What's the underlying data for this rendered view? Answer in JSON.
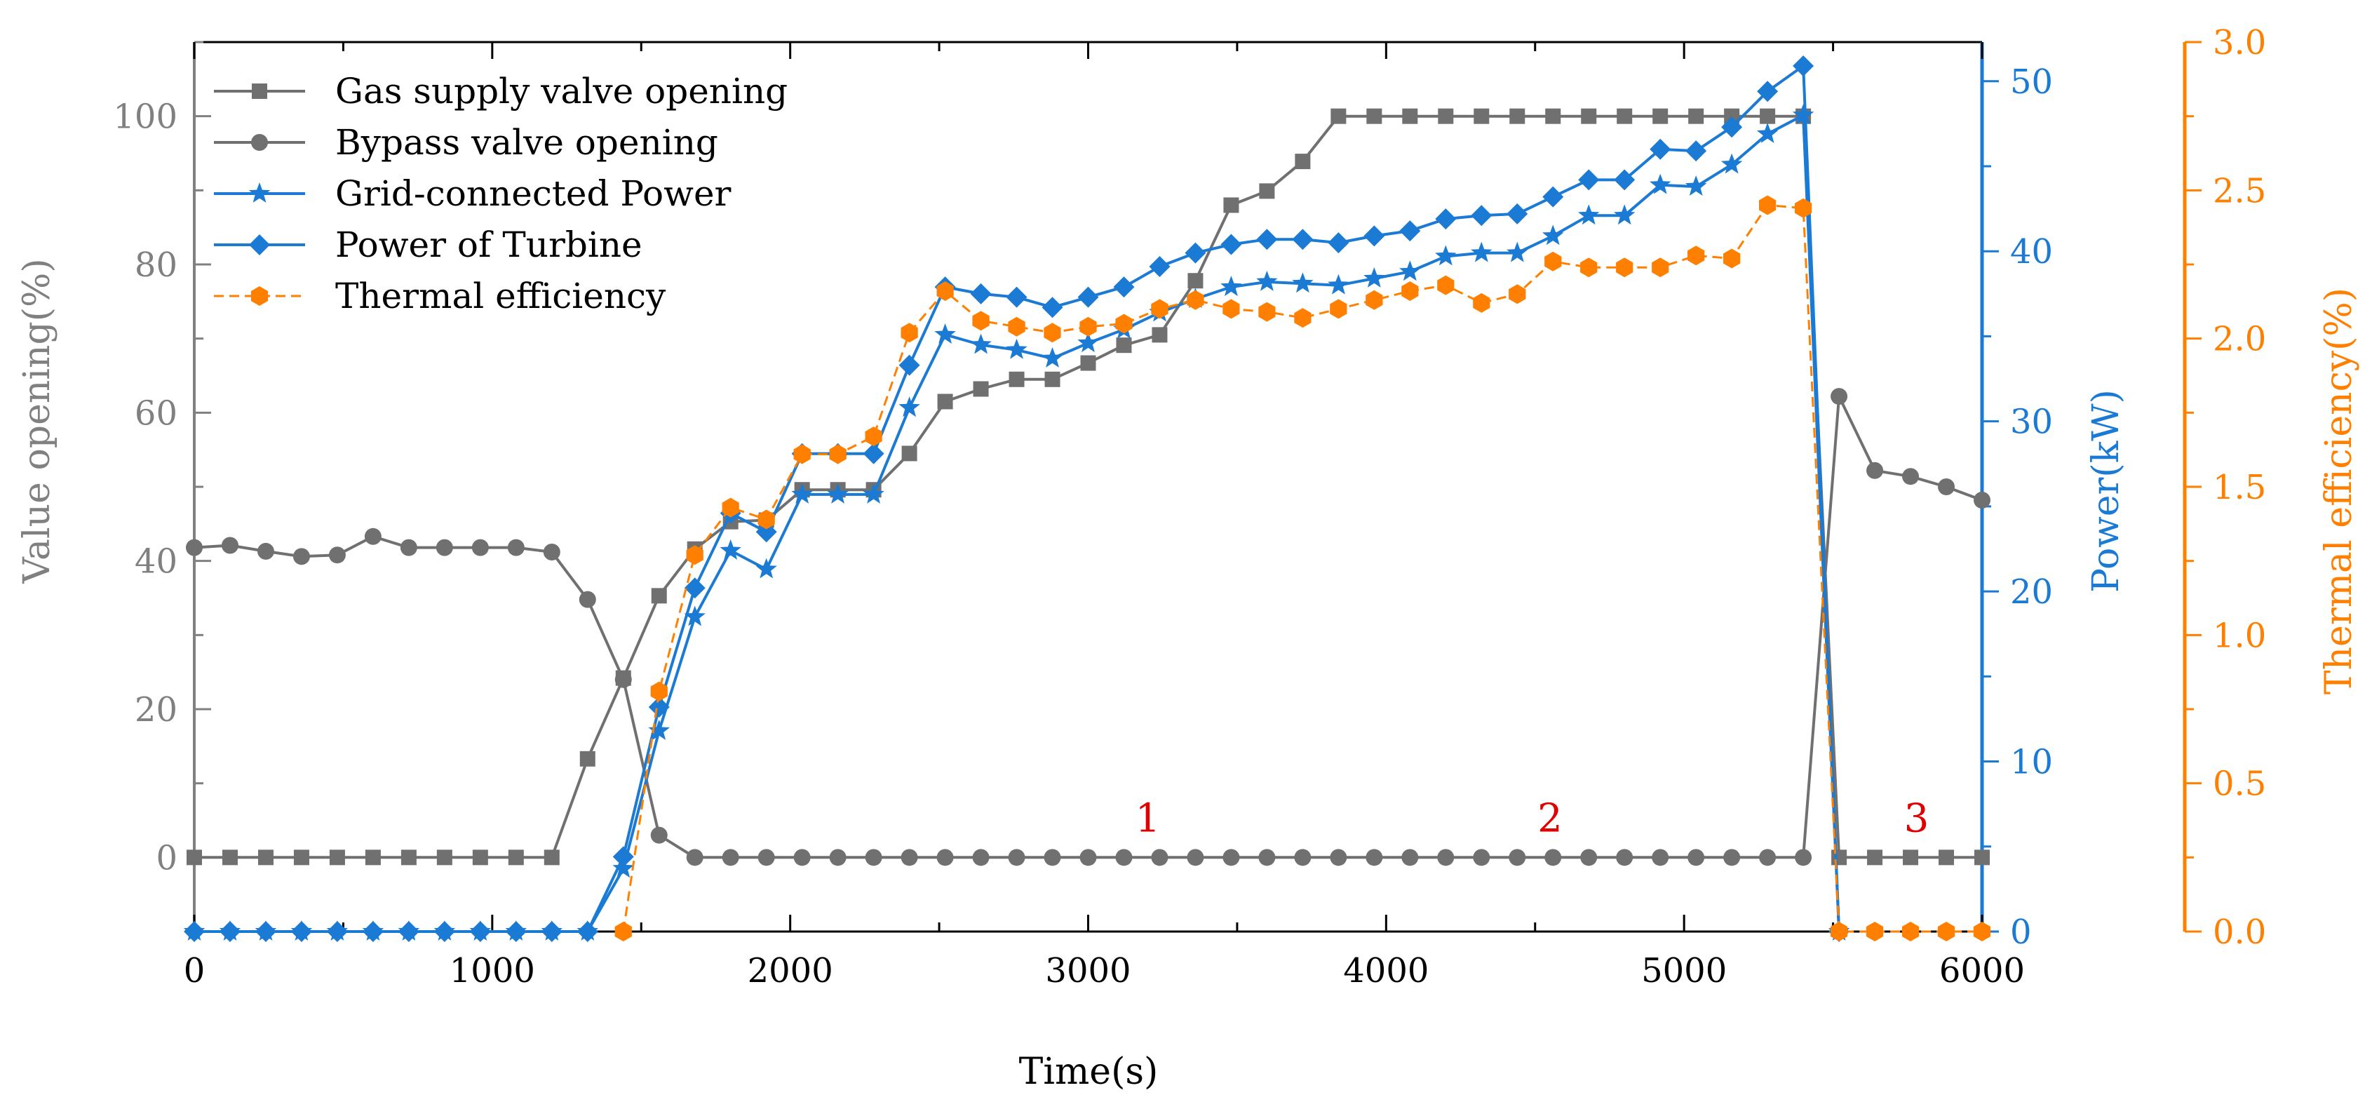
{
  "chart_data": {
    "type": "line",
    "xlabel": "Time(s)",
    "xlim": [
      0,
      6000
    ],
    "xticks": [
      "0",
      "1000",
      "2000",
      "3000",
      "4000",
      "5000",
      "6000"
    ],
    "axes": {
      "left": {
        "label": "Value opening(%)",
        "range": [
          -10,
          110
        ],
        "ticks": [
          "0",
          "20",
          "40",
          "60",
          "80",
          "100"
        ],
        "color": "#808080"
      },
      "right": {
        "label": "Power(kW)",
        "range": [
          0,
          52.3
        ],
        "ticks": [
          "0",
          "10",
          "20",
          "30",
          "40",
          "50"
        ],
        "color": "#1a7ad4"
      },
      "far_right": {
        "label": "Thermal efficiency(%)",
        "range": [
          0,
          3.0
        ],
        "ticks": [
          "0.0",
          "0.5",
          "1.0",
          "1.5",
          "2.0",
          "2.5",
          "3.0"
        ],
        "color": "#ff8000"
      }
    },
    "legend_position": "top-left",
    "series": [
      {
        "name": "Gas supply valve opening",
        "axis": "left",
        "color": "#707070",
        "marker": "square",
        "dashed": false,
        "x": [
          0,
          120,
          240,
          360,
          480,
          600,
          720,
          840,
          960,
          1080,
          1200,
          1320,
          1440,
          1560,
          1680,
          1800,
          1920,
          2040,
          2160,
          2280,
          2400,
          2520,
          2640,
          2760,
          2880,
          3000,
          3120,
          3240,
          3360,
          3480,
          3600,
          3720,
          3840,
          3960,
          4080,
          4200,
          4320,
          4440,
          4560,
          4680,
          4800,
          4920,
          5040,
          5160,
          5280,
          5400,
          5520,
          5640,
          5760,
          5880,
          6000
        ],
        "y": [
          0,
          0,
          0,
          0,
          0,
          0,
          0,
          0,
          0,
          0,
          0,
          13.3,
          24.2,
          35.3,
          41.6,
          45.3,
          45.5,
          49.6,
          49.6,
          49.6,
          54.5,
          61.5,
          63.2,
          64.5,
          64.5,
          66.7,
          69.1,
          70.5,
          77.8,
          88,
          89.9,
          93.9,
          100,
          100,
          100,
          100,
          100,
          100,
          100,
          100,
          100,
          100,
          100,
          100,
          100,
          100,
          0,
          0,
          0,
          0,
          0
        ]
      },
      {
        "name": "Bypass valve opening",
        "axis": "left",
        "color": "#707070",
        "marker": "circle",
        "dashed": false,
        "x": [
          0,
          120,
          240,
          360,
          480,
          600,
          720,
          840,
          960,
          1080,
          1200,
          1320,
          1440,
          1560,
          1680,
          1800,
          1920,
          2040,
          2160,
          2280,
          2400,
          2520,
          2640,
          2760,
          2880,
          3000,
          3120,
          3240,
          3360,
          3480,
          3600,
          3720,
          3840,
          3960,
          4080,
          4200,
          4320,
          4440,
          4560,
          4680,
          4800,
          4920,
          5040,
          5160,
          5280,
          5400,
          5520,
          5640,
          5760,
          5880,
          6000
        ],
        "y": [
          41.8,
          42.1,
          41.3,
          40.6,
          40.8,
          43.3,
          41.8,
          41.8,
          41.8,
          41.8,
          41.2,
          34.8,
          24,
          3,
          0,
          0,
          0,
          0,
          0,
          0,
          0,
          0,
          0,
          0,
          0,
          0,
          0,
          0,
          0,
          0,
          0,
          0,
          0,
          0,
          0,
          0,
          0,
          0,
          0,
          0,
          0,
          0,
          0,
          0,
          0,
          0,
          62.2,
          52.2,
          51.4,
          50,
          48.2
        ]
      },
      {
        "name": "Grid-connected Power",
        "axis": "right",
        "color": "#1a7ad4",
        "marker": "star",
        "dashed": false,
        "x": [
          0,
          120,
          240,
          360,
          480,
          600,
          720,
          840,
          960,
          1080,
          1200,
          1320,
          1440,
          1560,
          1680,
          1800,
          1920,
          2040,
          2160,
          2280,
          2400,
          2520,
          2640,
          2760,
          2880,
          3000,
          3120,
          3240,
          3360,
          3480,
          3600,
          3720,
          3840,
          3960,
          4080,
          4200,
          4320,
          4440,
          4560,
          4680,
          4800,
          4920,
          5040,
          5160,
          5280,
          5400,
          5520
        ],
        "y": [
          0,
          0,
          0,
          0,
          0,
          0,
          0,
          0,
          0,
          0,
          0,
          0,
          3.7,
          11.8,
          18.5,
          22.4,
          21.3,
          25.7,
          25.7,
          25.7,
          30.8,
          35.1,
          34.5,
          34.2,
          33.7,
          34.6,
          35.4,
          36.4,
          37.2,
          37.9,
          38.2,
          38.1,
          38,
          38.4,
          38.8,
          39.7,
          39.9,
          39.9,
          40.9,
          42.1,
          42.1,
          43.9,
          43.8,
          45.1,
          46.9,
          48,
          0
        ]
      },
      {
        "name": "Power of Turbine",
        "axis": "right",
        "color": "#1a7ad4",
        "marker": "diamond",
        "dashed": false,
        "x": [
          0,
          120,
          240,
          360,
          480,
          600,
          720,
          840,
          960,
          1080,
          1200,
          1320,
          1440,
          1560,
          1680,
          1800,
          1920,
          2040,
          2160,
          2280,
          2400,
          2520,
          2640,
          2760,
          2880,
          3000,
          3120,
          3240,
          3360,
          3480,
          3600,
          3720,
          3840,
          3960,
          4080,
          4200,
          4320,
          4440,
          4560,
          4680,
          4800,
          4920,
          5040,
          5160,
          5280,
          5400,
          5520
        ],
        "y": [
          0,
          0,
          0,
          0,
          0,
          0,
          0,
          0,
          0,
          0,
          0,
          0,
          4.4,
          13.2,
          20.2,
          24.6,
          23.5,
          28.1,
          28.1,
          28.1,
          33.3,
          37.9,
          37.5,
          37.3,
          36.7,
          37.3,
          37.9,
          39.1,
          39.9,
          40.4,
          40.7,
          40.7,
          40.5,
          40.9,
          41.2,
          41.9,
          42.1,
          42.2,
          43.2,
          44.2,
          44.2,
          46,
          45.9,
          47.3,
          49.4,
          50.9,
          0
        ]
      },
      {
        "name": "Thermal efficiency",
        "axis": "far_right",
        "color": "#ff8000",
        "marker": "hexagon",
        "dashed": true,
        "x": [
          1440,
          1560,
          1680,
          1800,
          1920,
          2040,
          2160,
          2280,
          2400,
          2520,
          2640,
          2760,
          2880,
          3000,
          3120,
          3240,
          3360,
          3480,
          3600,
          3720,
          3840,
          3960,
          4080,
          4200,
          4320,
          4440,
          4560,
          4680,
          4800,
          4920,
          5040,
          5160,
          5280,
          5400,
          5520,
          5640,
          5760,
          5880,
          6000
        ],
        "y": [
          0,
          0.81,
          1.27,
          1.43,
          1.39,
          1.61,
          1.61,
          1.67,
          2.02,
          2.16,
          2.06,
          2.04,
          2.02,
          2.04,
          2.05,
          2.1,
          2.13,
          2.1,
          2.09,
          2.07,
          2.1,
          2.13,
          2.16,
          2.18,
          2.12,
          2.15,
          2.26,
          2.24,
          2.24,
          2.24,
          2.28,
          2.27,
          2.45,
          2.44,
          0,
          0,
          0,
          0,
          0
        ]
      }
    ],
    "annotations": [
      {
        "text": "1",
        "x": 3200,
        "axis": "left",
        "y": 3.5,
        "color": "#e00000"
      },
      {
        "text": "2",
        "x": 4550,
        "axis": "left",
        "y": 3.5,
        "color": "#e00000"
      },
      {
        "text": "3",
        "x": 5780,
        "axis": "left",
        "y": 3.5,
        "color": "#e00000"
      }
    ]
  }
}
